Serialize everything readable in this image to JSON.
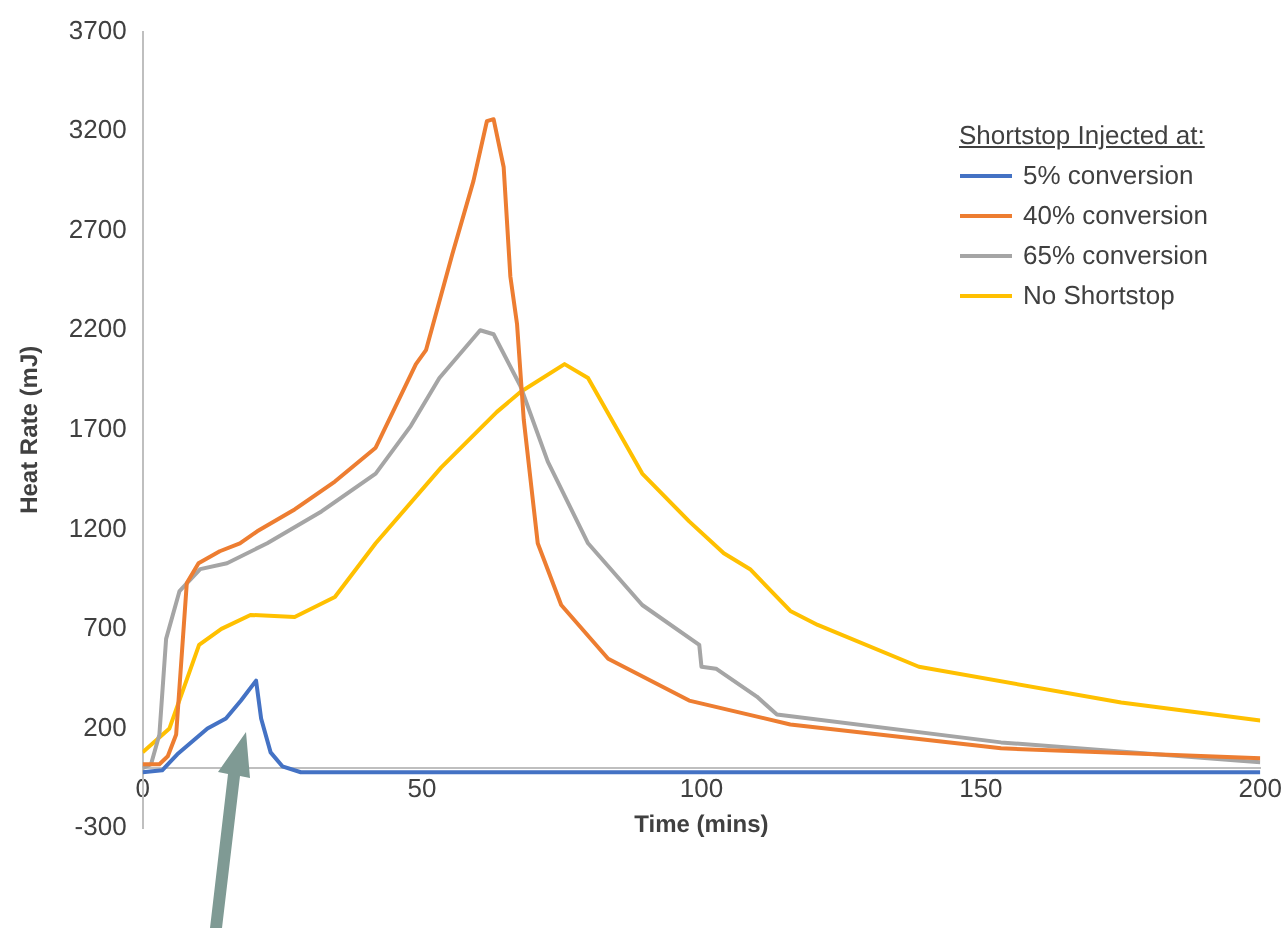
{
  "chart_data": {
    "type": "line",
    "xlabel": "Time (mins)",
    "ylabel": "Heat Rate (mJ)",
    "legend_title": "Shortstop Injected at:",
    "legend": "top right",
    "grid": false,
    "marker": "none",
    "line_style": "solid",
    "xlim": [
      0,
      200
    ],
    "xticks": [
      0,
      50,
      100,
      150,
      200
    ],
    "ylim": [
      -300,
      3700
    ],
    "yticks": [
      -300,
      200,
      700,
      1200,
      1700,
      2200,
      2700,
      3200,
      3700
    ],
    "series": [
      {
        "name": "5% conversion",
        "color": "#4472c4",
        "x": [
          0,
          3.5,
          6.2,
          11.6,
          14.9,
          17.6,
          20.3,
          21.2,
          22.9,
          25,
          28.3,
          50,
          100,
          150,
          200
        ],
        "values": [
          -20,
          -10,
          70,
          200,
          250,
          340,
          440,
          250,
          80,
          10,
          -20,
          -20,
          -20,
          -20,
          -20
        ]
      },
      {
        "name": "40% conversion",
        "color": "#ed7d31",
        "x": [
          0,
          3,
          4.5,
          6,
          7.9,
          10,
          13.8,
          17.4,
          20.5,
          27.2,
          34.4,
          41.7,
          48.9,
          50.7,
          55.4,
          59.2,
          61.6,
          62.8,
          64.6,
          65.8,
          67,
          68.2,
          70.7,
          74.9,
          83.3,
          97.8,
          115.9,
          153.6,
          200
        ],
        "values": [
          20,
          20,
          60,
          170,
          930,
          1030,
          1090,
          1130,
          1190,
          1300,
          1440,
          1610,
          2030,
          2100,
          2580,
          2950,
          3250,
          3260,
          3020,
          2470,
          2230,
          1750,
          1130,
          820,
          550,
          340,
          220,
          100,
          50
        ]
      },
      {
        "name": "65% conversion",
        "color": "#a5a5a5",
        "x": [
          0,
          1.5,
          3,
          4.2,
          6.6,
          10.3,
          15.1,
          22.3,
          32,
          41.7,
          48,
          53.1,
          60.4,
          62.8,
          67.6,
          72.5,
          79.7,
          89.4,
          99.6,
          100,
          102.6,
          109.9,
          113.5,
          153.6,
          200
        ],
        "values": [
          0,
          20,
          170,
          650,
          890,
          1000,
          1030,
          1130,
          1290,
          1480,
          1720,
          1960,
          2200,
          2180,
          1920,
          1540,
          1130,
          820,
          620,
          510,
          500,
          360,
          270,
          130,
          30
        ]
      },
      {
        "name": "No Shortstop",
        "color": "#ffc000",
        "x": [
          0,
          4.8,
          10.1,
          14.1,
          19.3,
          27.2,
          34.4,
          41.7,
          53.4,
          63.4,
          67.6,
          75.5,
          79.7,
          89.4,
          97.8,
          104,
          108.7,
          115.9,
          120.8,
          138.9,
          175.1,
          200
        ],
        "values": [
          80,
          200,
          620,
          700,
          770,
          760,
          860,
          1130,
          1510,
          1790,
          1890,
          2030,
          1960,
          1480,
          1240,
          1080,
          1000,
          790,
          720,
          510,
          330,
          240
        ]
      }
    ]
  }
}
